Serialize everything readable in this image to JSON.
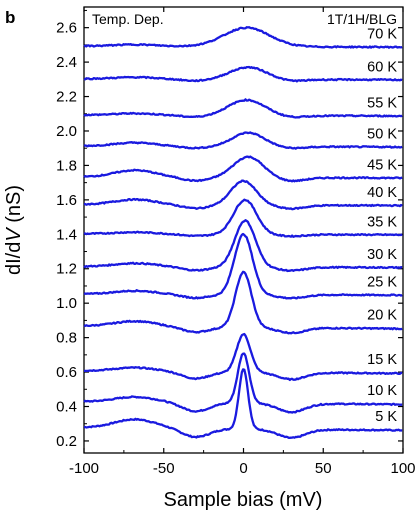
{
  "chart_data": {
    "type": "line",
    "panel_label": "b",
    "annotation_left": "Temp. Dep.",
    "annotation_right": "1T/1H/BLG",
    "xlabel": "Sample bias (mV)",
    "ylabel_parts": [
      "dI/d",
      "V",
      " (nS)"
    ],
    "xlim": [
      -100,
      100
    ],
    "ylim": [
      0.13,
      2.72
    ],
    "xticks": [
      -100,
      -50,
      0,
      50,
      100
    ],
    "xtick_labels": [
      "-100",
      "-50",
      "0",
      "50",
      "100"
    ],
    "yticks": [
      0.2,
      0.4,
      0.6,
      0.8,
      1.0,
      1.2,
      1.4,
      1.6,
      1.8,
      2.0,
      2.2,
      2.4,
      2.6
    ],
    "ytick_labels": [
      "0.2",
      "0.4",
      "0.6",
      "0.8",
      "1.0",
      "1.2",
      "1.4",
      "1.6",
      "1.8",
      "2.0",
      "2.2",
      "2.4",
      "2.6"
    ],
    "grid": false,
    "line_color": "#1a1adf",
    "series": [
      {
        "name": "5 K",
        "base": 0.27,
        "peak": 0.35,
        "width": 4,
        "center": 0,
        "dip": 0.05,
        "left_hump": 0.05
      },
      {
        "name": "10 K",
        "base": 0.42,
        "peak": 0.29,
        "width": 5,
        "center": 0,
        "dip": 0.05,
        "left_hump": 0.03
      },
      {
        "name": "15 K",
        "base": 0.6,
        "peak": 0.22,
        "width": 6,
        "center": 0,
        "dip": 0.04,
        "left_hump": 0.02
      },
      {
        "name": "20 K",
        "base": 0.86,
        "peak": 0.32,
        "width": 7,
        "center": 0,
        "dip": 0.03,
        "left_hump": 0.03
      },
      {
        "name": "25 K",
        "base": 1.05,
        "peak": 0.35,
        "width": 8,
        "center": 0,
        "dip": 0.02,
        "left_hump": 0.02
      },
      {
        "name": "30 K",
        "base": 1.21,
        "peak": 0.27,
        "width": 9,
        "center": 1,
        "dip": 0.02,
        "left_hump": 0.02
      },
      {
        "name": "35 K",
        "base": 1.4,
        "peak": 0.2,
        "width": 10,
        "center": 1,
        "dip": 0.01,
        "left_hump": 0.01
      },
      {
        "name": "40 K",
        "base": 1.57,
        "peak": 0.14,
        "width": 11,
        "center": 0,
        "dip": 0.02,
        "left_hump": 0.03
      },
      {
        "name": "45 K",
        "base": 1.73,
        "peak": 0.12,
        "width": 13,
        "center": 3,
        "dip": 0.02,
        "left_hump": 0.04
      },
      {
        "name": "50 K",
        "base": 1.91,
        "peak": 0.08,
        "width": 14,
        "center": 3,
        "dip": 0.01,
        "left_hump": 0.02
      },
      {
        "name": "55 K",
        "base": 2.09,
        "peak": 0.09,
        "width": 16,
        "center": 2,
        "dip": 0.01,
        "left_hump": 0.01
      },
      {
        "name": "60 K",
        "base": 2.3,
        "peak": 0.07,
        "width": 16,
        "center": 3,
        "dip": 0.01,
        "left_hump": 0.01
      },
      {
        "name": "70 K",
        "base": 2.49,
        "peak": 0.11,
        "width": 20,
        "center": 2,
        "dip": 0.0,
        "left_hump": 0.01
      }
    ]
  }
}
